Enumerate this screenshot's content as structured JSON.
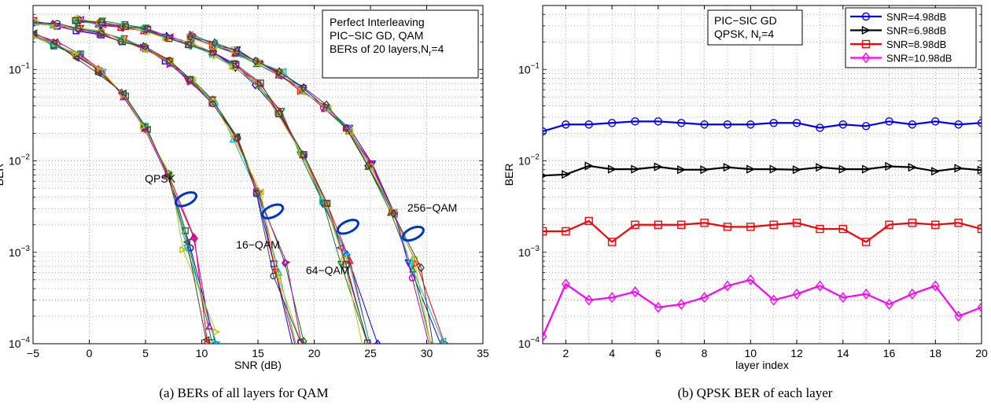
{
  "captions": {
    "a": "(a) BERs of all layers for QAM",
    "b": "(b) QPSK BER of each layer"
  },
  "chart_data": [
    {
      "type": "line",
      "yscale": "log",
      "xlabel": "SNR (dB)",
      "ylabel": "BER",
      "xlim": [
        -5,
        35
      ],
      "ylim": [
        0.0001,
        0.5
      ],
      "xticks": [
        -5,
        0,
        5,
        10,
        15,
        20,
        25,
        30,
        35
      ],
      "xtick_labels": [
        "−5",
        "0",
        "5",
        "10",
        "15",
        "20",
        "25",
        "30",
        "35"
      ],
      "yticks": [
        0.0001,
        0.001,
        0.01,
        0.1
      ],
      "ytick_labels": [
        {
          "base": "10",
          "exp": "−4"
        },
        {
          "base": "10",
          "exp": "−3"
        },
        {
          "base": "10",
          "exp": "−2"
        },
        {
          "base": "10",
          "exp": "−1"
        }
      ],
      "grid": true,
      "textbox": {
        "position": "top-right",
        "lines": [
          "Perfect Interleaving",
          "PIC−SIC GD, QAM"
        ],
        "line3_prefix": "BERs of 20 layers,N",
        "line3_sub": "r",
        "line3_suffix": "=4"
      },
      "annotations": [
        {
          "text": "QPSK",
          "x": 6.3,
          "y": 0.0058
        },
        {
          "text": "16−QAM",
          "x": 15.0,
          "y": 0.0011
        },
        {
          "text": "64−QAM",
          "x": 21.2,
          "y": 0.00058
        },
        {
          "text": "256−QAM",
          "x": 30.5,
          "y": 0.0028
        }
      ],
      "ellipses": [
        {
          "x": 8.6,
          "y": 0.0038
        },
        {
          "x": 16.3,
          "y": 0.0028
        },
        {
          "x": 23.0,
          "y": 0.0019
        },
        {
          "x": 28.8,
          "y": 0.0016
        }
      ],
      "groups": [
        {
          "name": "QPSK",
          "x": [
            -5,
            -3,
            -1,
            1,
            3,
            5,
            7,
            9,
            11
          ],
          "y": [
            0.24,
            0.19,
            0.14,
            0.095,
            0.053,
            0.023,
            0.0072,
            0.0013,
            0.00012
          ]
        },
        {
          "name": "16-QAM",
          "x": [
            -5,
            -3,
            -1,
            1,
            3,
            5,
            7,
            9,
            11,
            13,
            15,
            17,
            19
          ],
          "y": [
            0.33,
            0.31,
            0.28,
            0.25,
            0.21,
            0.17,
            0.12,
            0.075,
            0.044,
            0.018,
            0.0045,
            0.0006,
            8e-05
          ]
        },
        {
          "name": "64-QAM",
          "x": [
            -1,
            1,
            3,
            5,
            7,
            9,
            11,
            13,
            15,
            17,
            19,
            21,
            23,
            25
          ],
          "y": [
            0.34,
            0.32,
            0.3,
            0.27,
            0.23,
            0.19,
            0.15,
            0.11,
            0.068,
            0.034,
            0.012,
            0.0035,
            0.00085,
            8e-05
          ]
        },
        {
          "name": "256-QAM",
          "x": [
            9,
            11,
            13,
            15,
            17,
            19,
            21,
            23,
            25,
            27,
            29,
            31
          ],
          "y": [
            0.23,
            0.19,
            0.155,
            0.12,
            0.09,
            0.06,
            0.039,
            0.022,
            0.009,
            0.0027,
            0.00065,
            9e-05
          ]
        }
      ],
      "line_colors": [
        "#0000ff",
        "#008000",
        "#ff0000",
        "#00bfbf",
        "#bf00bf",
        "#bfbf00",
        "#404040"
      ],
      "markers": [
        "o",
        "s",
        "d",
        "v",
        "^",
        ">",
        "<"
      ]
    },
    {
      "type": "line",
      "yscale": "log",
      "xlabel": "layer index",
      "ylabel": "BER",
      "xlim": [
        1,
        20
      ],
      "ylim": [
        0.0001,
        0.5
      ],
      "xticks": [
        2,
        4,
        6,
        8,
        10,
        12,
        14,
        16,
        18,
        20
      ],
      "xtick_labels": [
        "2",
        "4",
        "6",
        "8",
        "10",
        "12",
        "14",
        "16",
        "18",
        "20"
      ],
      "yticks": [
        0.0001,
        0.001,
        0.01,
        0.1
      ],
      "ytick_labels": [
        {
          "base": "10",
          "exp": "−4"
        },
        {
          "base": "10",
          "exp": "−3"
        },
        {
          "base": "10",
          "exp": "−2"
        },
        {
          "base": "10",
          "exp": "−1"
        }
      ],
      "grid": true,
      "textbox": {
        "position": "top-center",
        "lines": [
          "PIC−SIC GD"
        ],
        "line2_prefix": "QPSK, N",
        "line2_sub": "r",
        "line2_suffix": "=4"
      },
      "legend_position": "top-right",
      "x": [
        1,
        2,
        3,
        4,
        5,
        6,
        7,
        8,
        9,
        10,
        11,
        12,
        13,
        14,
        15,
        16,
        17,
        18,
        19,
        20
      ],
      "series": [
        {
          "name": "SNR=4.98dB",
          "color": "#0000ff",
          "marker": "o",
          "values": [
            0.021,
            0.025,
            0.025,
            0.026,
            0.027,
            0.027,
            0.026,
            0.025,
            0.025,
            0.025,
            0.026,
            0.026,
            0.023,
            0.025,
            0.024,
            0.027,
            0.025,
            0.027,
            0.025,
            0.026
          ]
        },
        {
          "name": "SNR=6.98dB",
          "color": "#000000",
          "marker": ">",
          "values": [
            0.0069,
            0.0071,
            0.0088,
            0.0081,
            0.0081,
            0.0086,
            0.008,
            0.008,
            0.0085,
            0.0081,
            0.0081,
            0.008,
            0.0085,
            0.0081,
            0.0081,
            0.0087,
            0.0085,
            0.0077,
            0.0083,
            0.0079
          ]
        },
        {
          "name": "SNR=8.98dB",
          "color": "#ff0000",
          "marker": "s",
          "values": [
            0.0017,
            0.0017,
            0.0022,
            0.0013,
            0.002,
            0.002,
            0.002,
            0.0021,
            0.0019,
            0.0019,
            0.002,
            0.0021,
            0.0018,
            0.0018,
            0.0013,
            0.002,
            0.0021,
            0.002,
            0.0021,
            0.0018
          ]
        },
        {
          "name": "SNR=10.98dB",
          "color": "#ff00ff",
          "marker": "d",
          "values": [
            0.00012,
            0.00045,
            0.0003,
            0.00032,
            0.00037,
            0.00025,
            0.00027,
            0.00032,
            0.00043,
            0.0005,
            0.0003,
            0.00035,
            0.00043,
            0.00032,
            0.00035,
            0.00027,
            0.00035,
            0.00043,
            0.0002,
            0.00025
          ]
        }
      ]
    }
  ]
}
